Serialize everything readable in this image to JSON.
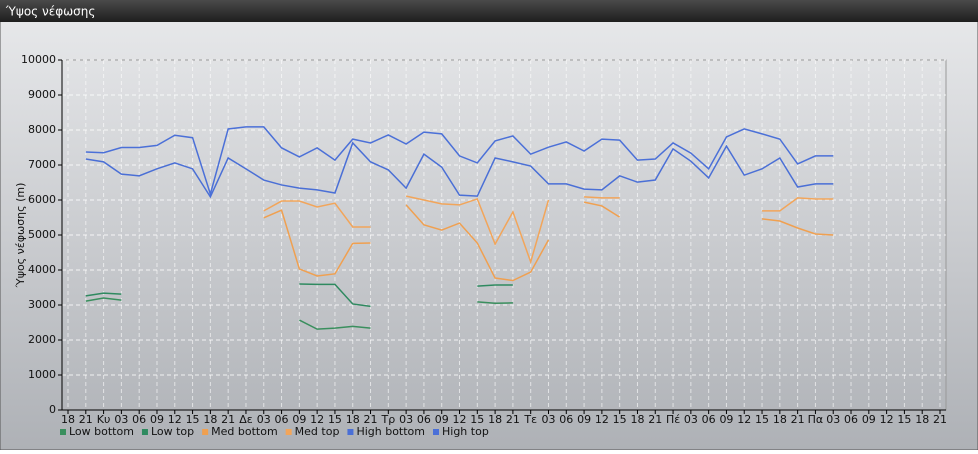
{
  "chart_data": {
    "type": "line",
    "title": "Ύψος νέφωσης",
    "y_label": "Ύψος νέφωσης (m)",
    "categories": [
      "18",
      "21",
      "Κυ",
      "03",
      "06",
      "09",
      "12",
      "15",
      "18",
      "21",
      "Δε",
      "03",
      "06",
      "09",
      "12",
      "15",
      "18",
      "21",
      "Τρ",
      "03",
      "06",
      "09",
      "12",
      "15",
      "18",
      "21",
      "Τε",
      "03",
      "06",
      "09",
      "12",
      "15",
      "18",
      "21",
      "Πέ",
      "03",
      "06",
      "09",
      "12",
      "15",
      "18",
      "21",
      "Πα",
      "03",
      "06",
      "09",
      "12",
      "15",
      "18",
      "21"
    ],
    "ylim": [
      0,
      10000
    ],
    "yticks": [
      0,
      1000,
      2000,
      3000,
      4000,
      5000,
      6000,
      7000,
      8000,
      9000,
      10000
    ],
    "grid": true,
    "series": [
      {
        "name": "Low bottom",
        "color": "#3a8f5e",
        "values": [
          null,
          3110,
          3200,
          3140,
          null,
          null,
          null,
          null,
          null,
          null,
          null,
          null,
          null,
          2570,
          2310,
          2340,
          2390,
          2340,
          null,
          null,
          null,
          null,
          null,
          3090,
          3050,
          3060,
          null,
          null,
          null,
          null,
          null,
          null,
          null,
          null,
          null,
          null,
          null,
          null,
          null,
          null,
          null,
          null,
          null,
          null,
          null,
          null,
          null,
          null,
          null,
          null
        ]
      },
      {
        "name": "Low top",
        "color": "#2f8a60",
        "values": [
          null,
          3260,
          3340,
          3310,
          null,
          null,
          null,
          null,
          null,
          null,
          null,
          null,
          null,
          3600,
          3590,
          3590,
          3030,
          2960,
          null,
          null,
          null,
          null,
          null,
          3540,
          3570,
          3570,
          null,
          null,
          null,
          null,
          null,
          null,
          null,
          null,
          null,
          null,
          null,
          null,
          null,
          null,
          null,
          null,
          null,
          null,
          null,
          null,
          null,
          null,
          null,
          null
        ]
      },
      {
        "name": "Med bottom",
        "color": "#f0a050",
        "values": [
          null,
          null,
          null,
          null,
          null,
          null,
          null,
          null,
          null,
          null,
          null,
          5490,
          5710,
          4030,
          3830,
          3890,
          4760,
          4770,
          null,
          5860,
          5290,
          5140,
          5340,
          4770,
          3770,
          3700,
          3940,
          4860,
          null,
          5940,
          5830,
          5510,
          null,
          null,
          null,
          null,
          null,
          null,
          null,
          5460,
          5400,
          5200,
          5030,
          5000,
          null,
          null,
          null,
          null,
          null,
          null
        ]
      },
      {
        "name": "Med top",
        "color": "#f2a55a",
        "values": [
          null,
          null,
          null,
          null,
          null,
          null,
          null,
          null,
          null,
          null,
          null,
          5690,
          5970,
          5970,
          5800,
          5910,
          5230,
          5230,
          null,
          6110,
          6000,
          5890,
          5860,
          6030,
          4740,
          5660,
          4230,
          6000,
          null,
          6090,
          6060,
          6060,
          null,
          null,
          null,
          null,
          null,
          null,
          null,
          5690,
          5690,
          6060,
          6030,
          6030,
          null,
          null,
          null,
          null,
          null,
          null
        ]
      },
      {
        "name": "High bottom",
        "color": "#4a6fd6",
        "values": [
          null,
          7170,
          7090,
          6740,
          6690,
          6890,
          7060,
          6890,
          6090,
          7200,
          6890,
          6570,
          6430,
          6340,
          6290,
          6200,
          7630,
          7090,
          6860,
          6340,
          7310,
          6940,
          6140,
          6110,
          7200,
          7090,
          6970,
          6460,
          6460,
          6310,
          6290,
          6690,
          6510,
          6570,
          7460,
          7110,
          6630,
          7540,
          6710,
          6890,
          7200,
          6370,
          6460,
          6460,
          null,
          null,
          null,
          null,
          null,
          null
        ]
      },
      {
        "name": "High top",
        "color": "#4b70d8",
        "values": [
          null,
          7370,
          7350,
          7500,
          7500,
          7560,
          7850,
          7780,
          6170,
          8030,
          8090,
          8090,
          7490,
          7230,
          7490,
          7140,
          7740,
          7630,
          7860,
          7600,
          7940,
          7890,
          7260,
          7060,
          7690,
          7830,
          7310,
          7510,
          7660,
          7400,
          7740,
          7710,
          7140,
          7170,
          7630,
          7340,
          6890,
          7800,
          8030,
          7890,
          7740,
          7030,
          7260,
          7260,
          null,
          null,
          null,
          null,
          null,
          null
        ]
      }
    ]
  }
}
